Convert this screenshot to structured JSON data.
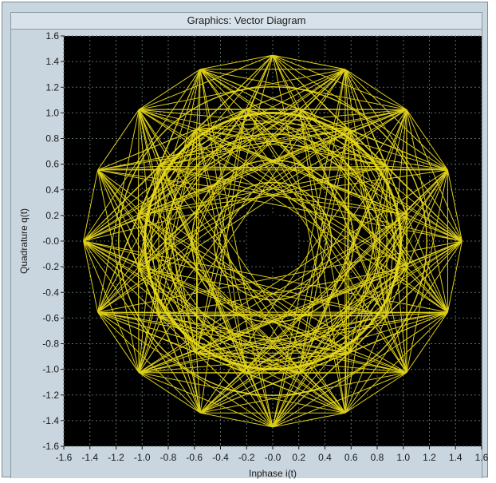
{
  "window": {
    "title": "Graphics: Vector Diagram"
  },
  "colors": {
    "background": "#000000",
    "trace": "#f2e21a",
    "grid": "#5a6e66",
    "frame": "#c9d5df"
  },
  "chart_data": {
    "type": "line",
    "title": "",
    "xlabel": "Inphase i(t)",
    "ylabel": "Quadrature q(t)",
    "xlim": [
      -1.6,
      1.6
    ],
    "ylim": [
      -1.6,
      1.6
    ],
    "grid": true,
    "xticks": [
      "-1.6",
      "-1.4",
      "-1.2",
      "-1.0",
      "-0.8",
      "-0.6",
      "-0.4",
      "-0.2",
      "-0.0",
      "0.2",
      "0.4",
      "0.6",
      "0.8",
      "1.0",
      "1.2",
      "1.4",
      "1.6"
    ],
    "yticks": [
      "1.6",
      "1.4",
      "1.2",
      "1.0",
      "0.8",
      "0.6",
      "0.4",
      "0.2",
      "-0.0",
      "-0.2",
      "-0.4",
      "-0.6",
      "-0.8",
      "-1.0",
      "-1.2",
      "-1.4",
      "-1.6"
    ],
    "constellation": {
      "outer_ring": {
        "radius": 1.45,
        "points": 16
      },
      "inner_ring": {
        "radius": 1.05,
        "points": 16
      },
      "hole_radius": 0.2
    }
  }
}
